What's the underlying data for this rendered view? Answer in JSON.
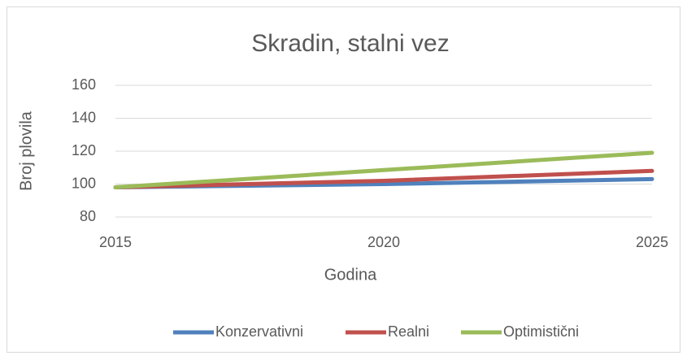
{
  "chart_data": {
    "type": "line",
    "title": "Skradin, stalni vez",
    "x_label": "Godina",
    "y_label": "Broj plovila",
    "x": [
      2015,
      2020,
      2025
    ],
    "series": [
      {
        "name": "Konzervativni",
        "color": "#4f81bd",
        "values": [
          98,
          100,
          103
        ]
      },
      {
        "name": "Realni",
        "color": "#c0504d",
        "values": [
          98,
          102,
          108
        ]
      },
      {
        "name": "Optimistični",
        "color": "#9bbb59",
        "values": [
          98,
          108.5,
          119
        ]
      }
    ],
    "xlim": [
      2015,
      2025
    ],
    "xticks": [
      2015,
      2020,
      2025
    ],
    "ylim": [
      80,
      160
    ],
    "yticks": [
      80,
      100,
      120,
      140,
      160
    ],
    "grid": true,
    "legend": "bottom"
  }
}
